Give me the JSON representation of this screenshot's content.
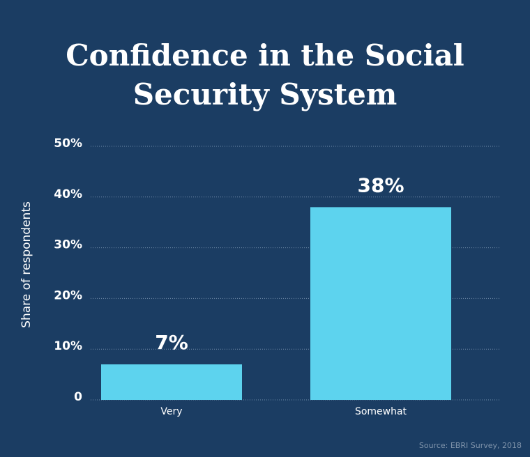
{
  "chart_data": {
    "type": "bar",
    "title": "Confidence in the Social Security System",
    "categories": [
      "Very",
      "Somewhat"
    ],
    "values": [
      7,
      38
    ],
    "value_labels": [
      "7%",
      "38%"
    ],
    "color": "#5dd3ee",
    "y_axis_label": "Share of respondents",
    "ylim": [
      0,
      50
    ],
    "yticks": [
      0,
      {
        "value": 10,
        "label": "10%"
      },
      {
        "value": 20,
        "label": "20%"
      },
      {
        "value": 30,
        "label": "30%"
      },
      {
        "value": 40,
        "label": "40%"
      },
      {
        "value": 50,
        "label": "50%"
      }
    ],
    "grid": true,
    "source": "Source: EBRI Survey, 2018"
  }
}
